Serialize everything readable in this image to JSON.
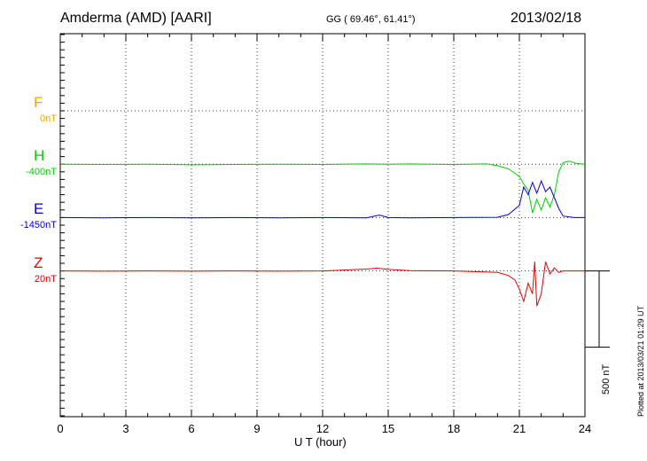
{
  "header": {
    "station": "Amderma (AMD)  [AARI]",
    "coords": "GG ( 69.46°,  61.41°)",
    "date": "2013/02/18"
  },
  "side_labels": [
    {
      "key": "F",
      "name": "F",
      "base": "0nT",
      "color": "#f0a800"
    },
    {
      "key": "H",
      "name": "H",
      "base": "-400nT",
      "color": "#00d000"
    },
    {
      "key": "E",
      "name": "E",
      "base": "-1450nT",
      "color": "#0000d0"
    },
    {
      "key": "Z",
      "name": "Z",
      "base": "20nT",
      "color": "#e00000"
    }
  ],
  "scale_bar": "500 nT",
  "plotted_note": "Plotted at 2013/03/21 01:29 UT",
  "chart_data": {
    "type": "line",
    "xlabel": "U T (hour)",
    "xlim": [
      0,
      24
    ],
    "x_ticks": [
      "0",
      "3",
      "6",
      "9",
      "12",
      "15",
      "18",
      "21",
      "24"
    ],
    "baseline_offsets_nT": {
      "F": 1000,
      "H": 650,
      "E": 300,
      "Z": -50
    },
    "series": [
      {
        "key": "H",
        "color": "#00d000",
        "x": [
          0,
          2,
          4,
          6,
          8,
          10,
          12,
          14,
          15,
          16,
          18,
          19.5,
          20,
          20.5,
          21,
          21.2,
          21.4,
          21.6,
          21.8,
          22,
          22.2,
          22.4,
          22.6,
          22.8,
          23,
          23.3,
          23.6,
          24
        ],
        "y": [
          0,
          -2,
          0,
          -4,
          -2,
          0,
          -2,
          2,
          0,
          2,
          -2,
          2,
          -10,
          -30,
          -80,
          -130,
          -170,
          -320,
          -230,
          -300,
          -220,
          -280,
          -200,
          -50,
          10,
          20,
          5,
          0
        ]
      },
      {
        "key": "E",
        "color": "#0000d0",
        "x": [
          0,
          2,
          4,
          6,
          8,
          10,
          12,
          14,
          14.6,
          15,
          16,
          18,
          20,
          20.5,
          21,
          21.2,
          21.4,
          21.6,
          21.8,
          22,
          22.2,
          22.4,
          22.6,
          22.8,
          23,
          23.5,
          24
        ],
        "y": [
          0,
          -2,
          0,
          -2,
          0,
          -2,
          0,
          -2,
          16,
          0,
          -2,
          0,
          2,
          20,
          80,
          200,
          150,
          230,
          160,
          240,
          170,
          200,
          130,
          60,
          10,
          0,
          0
        ]
      },
      {
        "key": "Z",
        "color": "#e00000",
        "x": [
          0,
          2,
          4,
          6,
          8,
          10,
          12,
          14,
          14.5,
          15,
          16,
          18,
          20,
          20.5,
          20.8,
          21,
          21.2,
          21.4,
          21.6,
          21.7,
          21.8,
          22,
          22.2,
          22.4,
          22.6,
          22.8,
          23,
          23.5,
          24
        ],
        "y": [
          0,
          -2,
          0,
          -2,
          0,
          -2,
          0,
          12,
          18,
          10,
          2,
          0,
          -10,
          -30,
          -60,
          -120,
          -200,
          -80,
          -150,
          60,
          -230,
          -150,
          60,
          -20,
          20,
          -10,
          0,
          0,
          0
        ]
      }
    ]
  }
}
